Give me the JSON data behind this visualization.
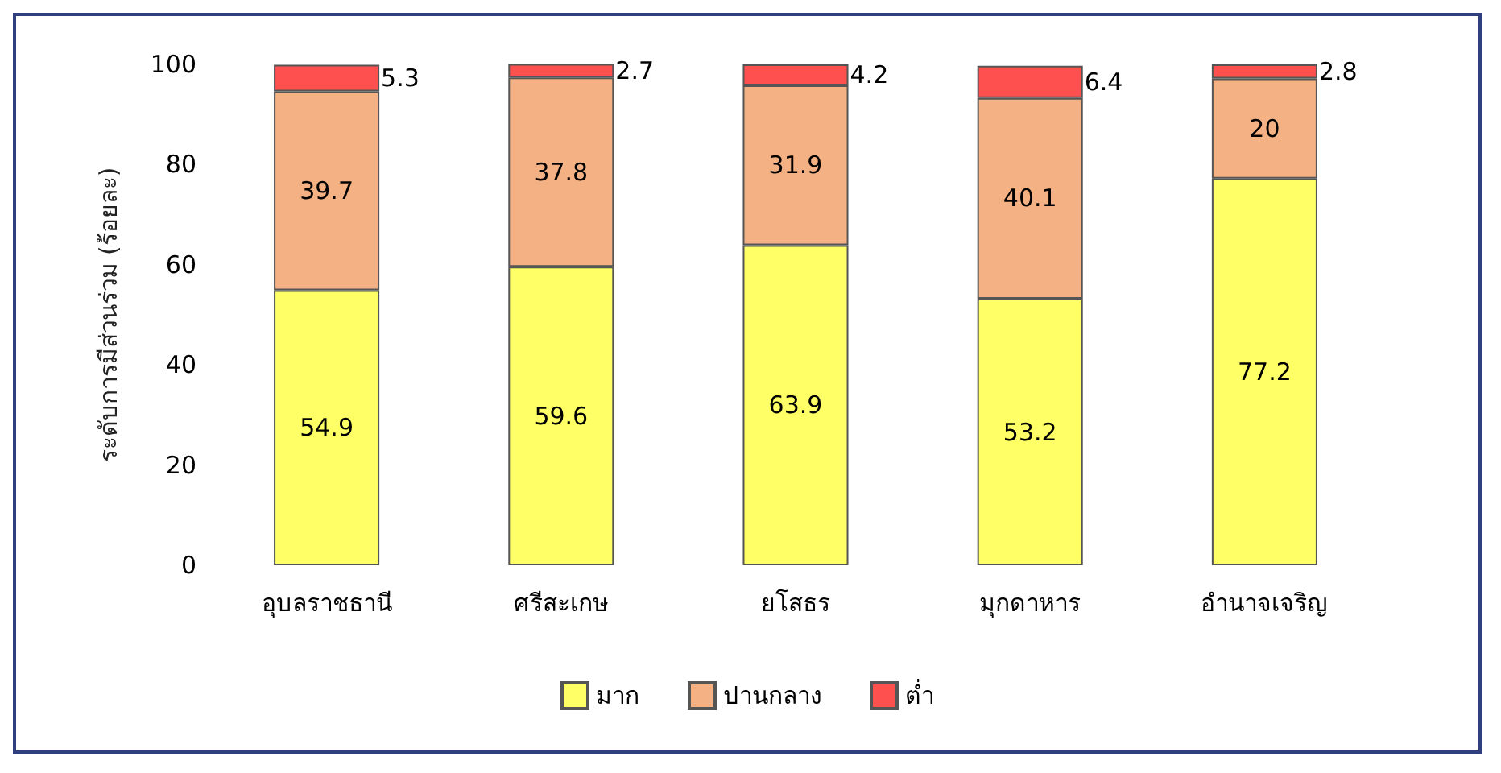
{
  "chart_data": {
    "type": "bar",
    "stacked": true,
    "ylabel": "ระดับการมีส่วนร่วม (ร้อยละ)",
    "categories": [
      "อุบลราชธานี",
      "ศรีสะเกษ",
      "ยโสธร",
      "มุกดาหาร",
      "อำนาจเจริญ"
    ],
    "series": [
      {
        "name": "มาก",
        "color": "#ffff66",
        "values": [
          54.9,
          59.6,
          63.9,
          53.2,
          77.2
        ]
      },
      {
        "name": "ปานกลาง",
        "color": "#f4b183",
        "values": [
          39.7,
          37.8,
          31.9,
          40.1,
          20
        ]
      },
      {
        "name": "ต่ำ",
        "color": "#ff5050",
        "values": [
          5.3,
          2.7,
          4.2,
          6.4,
          2.8
        ]
      }
    ],
    "ylim": [
      0,
      100
    ],
    "yticks": [
      0,
      20,
      40,
      60,
      80,
      100
    ],
    "grid": false,
    "legend": "bottom",
    "data_labels": true
  }
}
